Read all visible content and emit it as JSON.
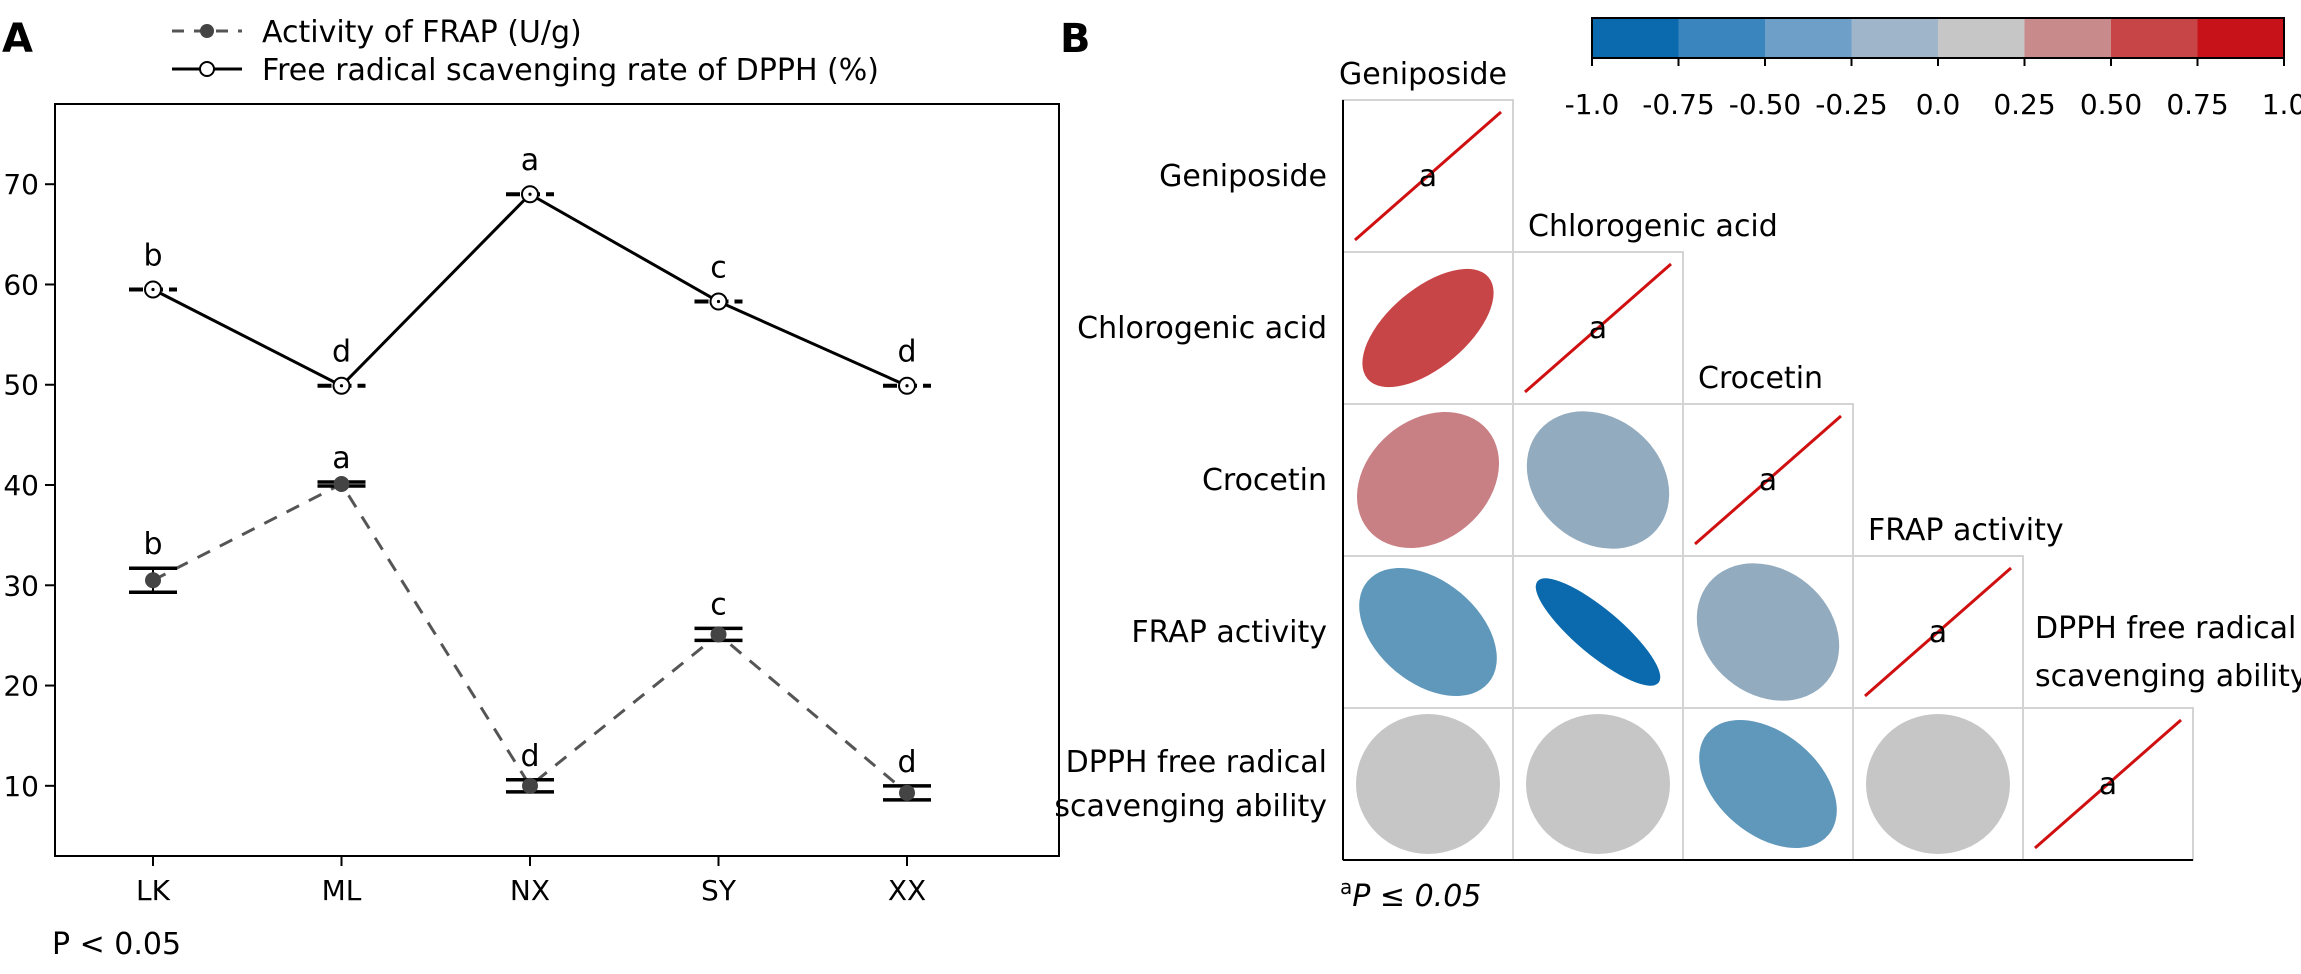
{
  "chart_data": [
    {
      "type": "line",
      "panel_label": "A",
      "categories": [
        "LK",
        "ML",
        "NX",
        "SY",
        "XX"
      ],
      "ylim": [
        3,
        78
      ],
      "yticks": [
        10,
        20,
        30,
        40,
        50,
        60,
        70
      ],
      "footnote": "P < 0.05",
      "series": [
        {
          "name": "Activity of FRAP (U/g)",
          "style": "dashed",
          "marker": "filled-circle",
          "values": [
            30.5,
            40.1,
            10.0,
            25.1,
            9.3
          ],
          "error": [
            1.2,
            0.2,
            0.6,
            0.6,
            0.7
          ],
          "letters": [
            "b",
            "a",
            "d",
            "c",
            "d"
          ]
        },
        {
          "name": "Free radical scavenging rate of DPPH (%)",
          "style": "solid",
          "marker": "open-circle",
          "values": [
            59.5,
            49.9,
            69.0,
            58.3,
            49.9
          ],
          "error": [
            0.3,
            0.2,
            0.3,
            0.3,
            0.2
          ],
          "letters": [
            "b",
            "d",
            "a",
            "c",
            "d"
          ]
        }
      ]
    },
    {
      "type": "heatmap",
      "panel_label": "B",
      "variables": [
        "Geniposide",
        "Chlorogenic acid",
        "Crocetin",
        "FRAP activity",
        "DPPH free radical scavenging ability"
      ],
      "display_labels": [
        [
          "Geniposide"
        ],
        [
          "Chlorogenic acid"
        ],
        [
          "Crocetin"
        ],
        [
          "FRAP activity"
        ],
        [
          "DPPH free radical",
          "scavenging ability"
        ]
      ],
      "colorbar": {
        "ticks": [
          "-1.0",
          "-0.75",
          "-0.50",
          "-0.25",
          "0.0",
          "0.25",
          "0.50",
          "0.75",
          "1.0"
        ],
        "colors": [
          "#0a6aad",
          "#3a85bd",
          "#6e9fc8",
          "#9fb6ca",
          "#c6c6c6",
          "#c98a8c",
          "#c84547",
          "#c8121a"
        ]
      },
      "cells": [
        {
          "row": 1,
          "col": 0,
          "r": 0.7,
          "color": "#c84547"
        },
        {
          "row": 2,
          "col": 0,
          "r": 0.3,
          "color": "#c98084"
        },
        {
          "row": 2,
          "col": 1,
          "r": -0.25,
          "color": "#93abbe"
        },
        {
          "row": 3,
          "col": 0,
          "r": -0.5,
          "color": "#6098bb"
        },
        {
          "row": 3,
          "col": 1,
          "r": -0.9,
          "color": "#0a6aad"
        },
        {
          "row": 3,
          "col": 2,
          "r": -0.25,
          "color": "#93abbe"
        },
        {
          "row": 4,
          "col": 0,
          "r": 0.0,
          "color": "#c6c6c6"
        },
        {
          "row": 4,
          "col": 1,
          "r": 0.0,
          "color": "#c6c6c6"
        },
        {
          "row": 4,
          "col": 2,
          "r": -0.5,
          "color": "#6098bb"
        },
        {
          "row": 4,
          "col": 3,
          "r": 0.0,
          "color": "#c6c6c6"
        }
      ],
      "diagonal_letter": "a",
      "diagonal_color": "#d01010",
      "footnote_sup": "a",
      "footnote_text": "P ≤ 0.05"
    }
  ]
}
